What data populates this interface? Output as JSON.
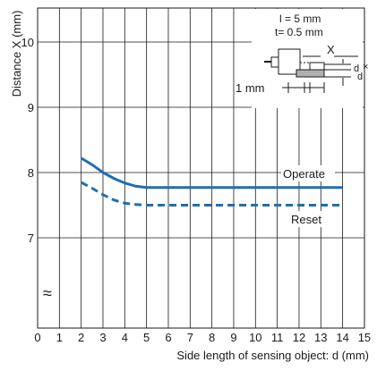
{
  "chart_data": {
    "type": "line",
    "xlabel": "Side length of sensing object: d (mm)",
    "ylabel": "Distance X (mm)",
    "x_ticks": [
      0,
      1,
      2,
      3,
      4,
      5,
      6,
      7,
      8,
      9,
      10,
      11,
      12,
      13,
      14,
      15
    ],
    "xlim": [
      0,
      15
    ],
    "y_ticks": [
      7,
      8,
      9,
      10
    ],
    "y_break_symbol": "≈",
    "grid": true,
    "series": [
      {
        "name": "Operate",
        "style": "solid",
        "color": "#1f6db3",
        "x": [
          2,
          2.5,
          3,
          3.5,
          4,
          4.5,
          5,
          6,
          8,
          10,
          12,
          14
        ],
        "y": [
          8.22,
          8.12,
          8.0,
          7.91,
          7.84,
          7.79,
          7.77,
          7.77,
          7.77,
          7.77,
          7.77,
          7.77
        ]
      },
      {
        "name": "Reset",
        "style": "dashed",
        "color": "#1f6db3",
        "x": [
          2,
          2.5,
          3,
          3.5,
          4,
          4.5,
          5,
          6,
          8,
          10,
          12,
          14
        ],
        "y": [
          7.85,
          7.76,
          7.66,
          7.58,
          7.53,
          7.51,
          7.5,
          7.5,
          7.5,
          7.5,
          7.5,
          7.5
        ]
      }
    ],
    "inset": {
      "conditions": [
        "l = 5 mm",
        "t= 0.5 mm"
      ],
      "x_label": "X",
      "d_label": "d",
      "times_label": "×",
      "d_label_2": "d",
      "gap_label": "1 mm"
    }
  }
}
